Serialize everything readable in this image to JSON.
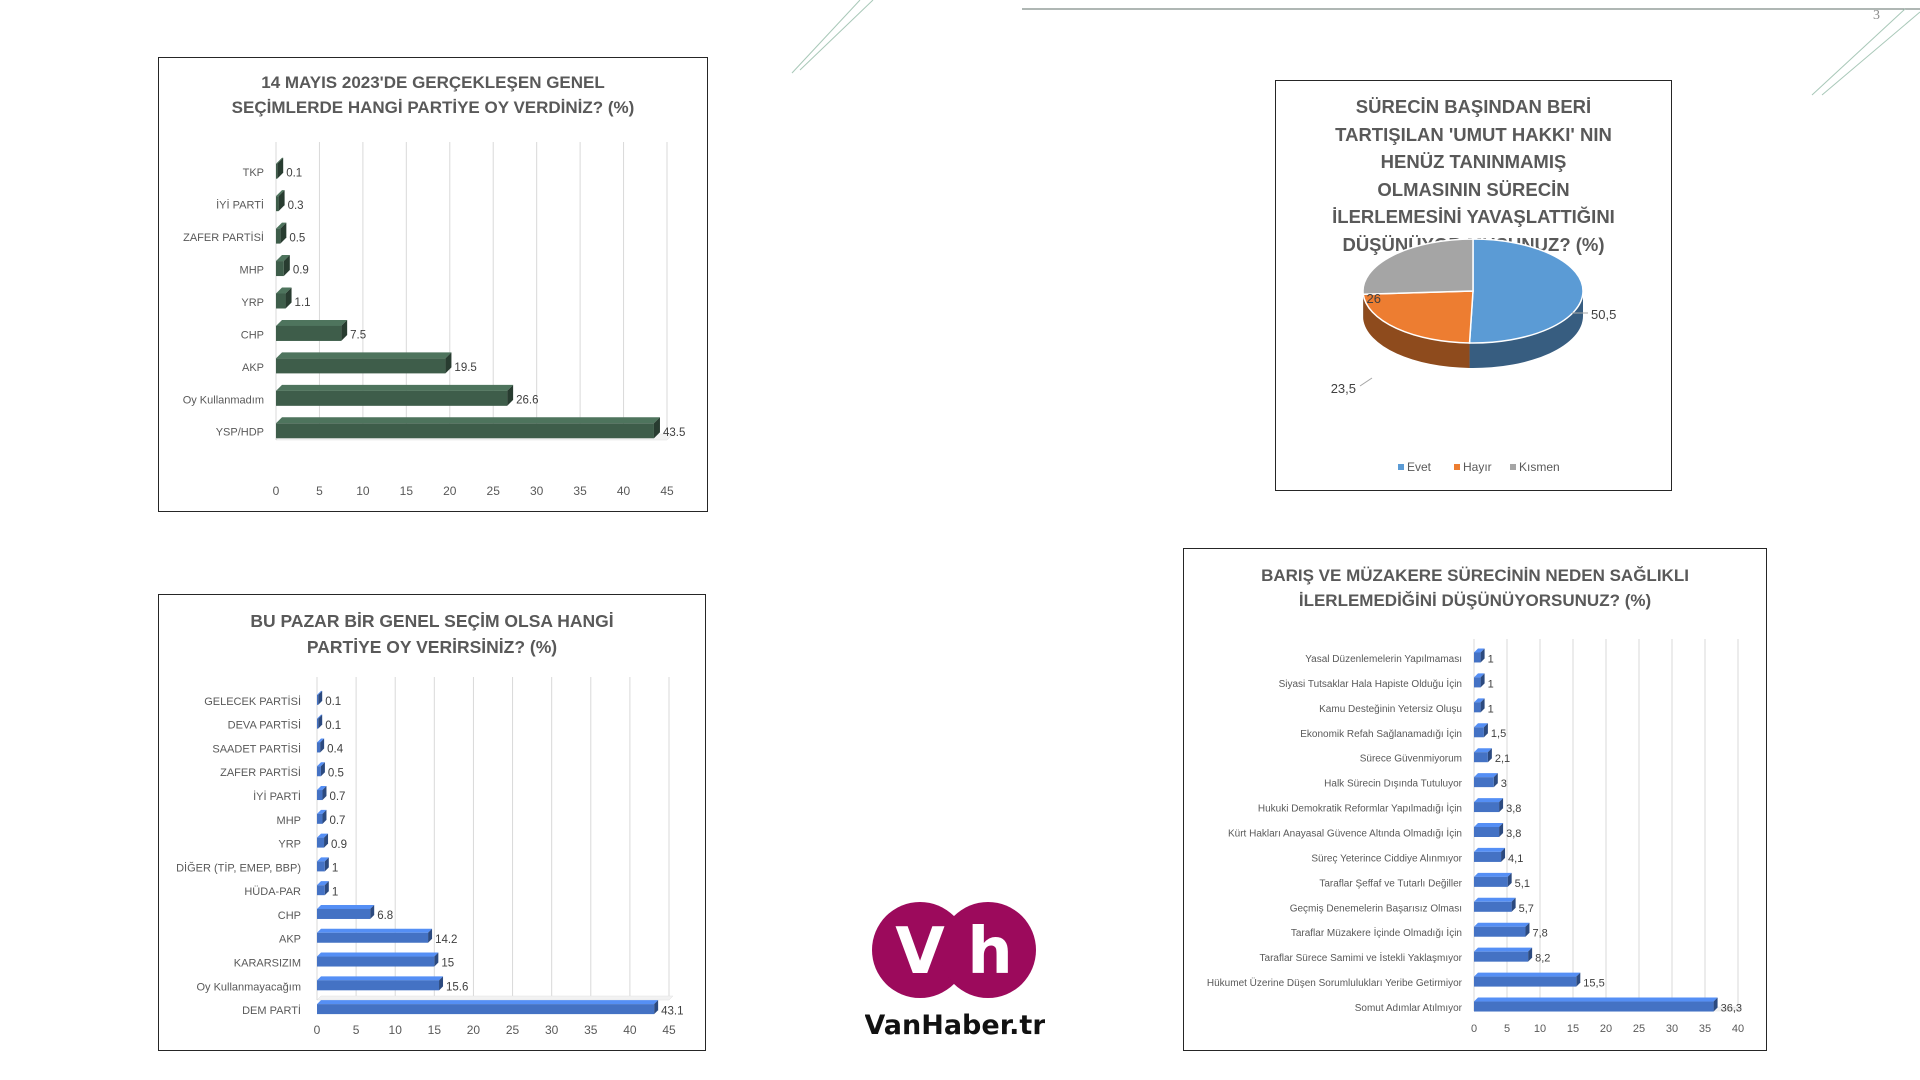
{
  "page": {
    "number": "3"
  },
  "logo": {
    "letter_v": "V",
    "letter_h": "h",
    "text": "VanHaber.tr",
    "color": "#9c0a5c"
  },
  "chart_data": [
    {
      "type": "bar",
      "orientation": "horizontal",
      "title": "14 MAYIS 2023'DE GERÇEKLEŞEN GENEL SEÇİMLERDE HANGİ PARTİYE OY VERDİNİZ? (%)",
      "title_lines": [
        "14 MAYIS 2023'DE GERÇEKLEŞEN GENEL",
        "SEÇİMLERDE HANGİ PARTİYE OY VERDİNİZ? (%)"
      ],
      "categories": [
        "TKP",
        "İYİ PARTİ",
        "ZAFER PARTİSİ",
        "MHP",
        "YRP",
        "CHP",
        "AKP",
        "Oy Kullanmadım",
        "YSP/HDP"
      ],
      "values": [
        0.1,
        0.3,
        0.5,
        0.9,
        1.1,
        7.5,
        19.5,
        26.6,
        43.5
      ],
      "value_labels": [
        "0.1",
        "0.3",
        "0.5",
        "0.9",
        "1.1",
        "7.5",
        "19.5",
        "26.6",
        "43.5"
      ],
      "xlim": [
        0,
        45
      ],
      "ticks": [
        "0",
        "5",
        "10",
        "15",
        "20",
        "25",
        "30",
        "35",
        "40",
        "45"
      ],
      "bar_color": "#3e5d4a",
      "grid": true
    },
    {
      "type": "pie",
      "title": "SÜRECİN BAŞINDAN BERİ TARTIŞILAN 'UMUT HAKKI' NIN HENÜZ TANINMAMIŞ OLMASININ SÜRECİN İLERLEMESİNİ YAVAŞLATTIĞINI DÜŞÜNÜYOR MUSUNUZ? (%)",
      "title_lines": [
        "SÜRECİN BAŞINDAN BERİ",
        "TARTIŞILAN 'UMUT HAKKI' NIN",
        "HENÜZ TANINMAMIŞ",
        "OLMASININ SÜRECİN",
        "İLERLEMESİNİ YAVAŞLATTIĞINI",
        "DÜŞÜNÜYOR MUSUNUZ? (%)"
      ],
      "categories": [
        "Evet",
        "Hayır",
        "Kısmen"
      ],
      "values": [
        50.5,
        23.5,
        26
      ],
      "value_labels": [
        "50,5",
        "23,5",
        "26"
      ],
      "colors": [
        "#5b9bd5",
        "#ed7d31",
        "#a5a5a5"
      ],
      "legend": "bottom"
    },
    {
      "type": "bar",
      "orientation": "horizontal",
      "title": "BU PAZAR BİR GENEL SEÇİM OLSA HANGİ PARTİYE OY VERİRSİNİZ? (%)",
      "title_lines": [
        "BU PAZAR BİR GENEL SEÇİM OLSA HANGİ",
        "PARTİYE OY VERİRSİNİZ? (%)"
      ],
      "categories": [
        "GELECEK PARTİSİ",
        "DEVA PARTİSİ",
        "SAADET PARTİSİ",
        "ZAFER PARTİSİ",
        "İYİ PARTİ",
        "MHP",
        "YRP",
        "DİĞER (TİP, EMEP, BBP)",
        "HÜDA-PAR",
        "CHP",
        "AKP",
        "KARARSIZIM",
        "Oy Kullanmayacağım",
        "DEM PARTİ"
      ],
      "values": [
        0.1,
        0.1,
        0.4,
        0.5,
        0.7,
        0.7,
        0.9,
        1,
        1,
        6.8,
        14.2,
        15,
        15.6,
        43.1
      ],
      "value_labels": [
        "0.1",
        "0.1",
        "0.4",
        "0.5",
        "0.7",
        "0.7",
        "0.9",
        "1",
        "1",
        "6.8",
        "14.2",
        "15",
        "15.6",
        "43.1"
      ],
      "xlim": [
        0,
        45
      ],
      "ticks": [
        "0",
        "5",
        "10",
        "15",
        "20",
        "25",
        "30",
        "35",
        "40",
        "45"
      ],
      "bar_color": "#4472c4",
      "grid": true
    },
    {
      "type": "bar",
      "orientation": "horizontal",
      "title": "BARIŞ VE MÜZAKERE SÜRECİNİN NEDEN SAĞLIKLI İLERLEMEDİĞİNİ DÜŞÜNÜYORSUNUZ? (%)",
      "title_lines": [
        "BARIŞ VE MÜZAKERE SÜRECİNİN NEDEN SAĞLIKLI",
        "İLERLEMEDİĞİNİ DÜŞÜNÜYORSUNUZ? (%)"
      ],
      "categories": [
        "Yasal Düzenlemelerin Yapılmaması",
        "Siyasi Tutsaklar Hala Hapiste Olduğu İçin",
        "Kamu Desteğinin Yetersiz Oluşu",
        "Ekonomik Refah Sağlanamadığı İçin",
        "Sürece Güvenmiyorum",
        "Halk Sürecin Dışında Tutuluyor",
        "Hukuki Demokratik Reformlar Yapılmadığı İçin",
        "Kürt Hakları Anayasal Güvence Altında Olmadığı İçin",
        "Süreç Yeterince Ciddiye Alınmıyor",
        "Taraflar Şeffaf ve Tutarlı Değiller",
        "Geçmiş Denemelerin Başarısız Olması",
        "Taraflar Müzakere İçinde Olmadığı İçin",
        "Taraflar Sürece Samimi ve İstekli Yaklaşmıyor",
        "Hükumet Üzerine Düşen Sorumlulukları Yeribe Getirmiyor",
        "Somut Adımlar Atılmıyor"
      ],
      "values": [
        1,
        1,
        1,
        1.5,
        2.1,
        3,
        3.8,
        3.8,
        4.1,
        5.1,
        5.7,
        7.8,
        8.2,
        15.5,
        36.3
      ],
      "value_labels": [
        "1",
        "1",
        "1",
        "1,5",
        "2,1",
        "3",
        "3,8",
        "3,8",
        "4,1",
        "5,1",
        "5,7",
        "7,8",
        "8,2",
        "15,5",
        "36,3"
      ],
      "xlim": [
        0,
        40
      ],
      "ticks": [
        "0",
        "5",
        "10",
        "15",
        "20",
        "25",
        "30",
        "35",
        "40"
      ],
      "bar_color": "#4472c4",
      "grid": true
    }
  ]
}
